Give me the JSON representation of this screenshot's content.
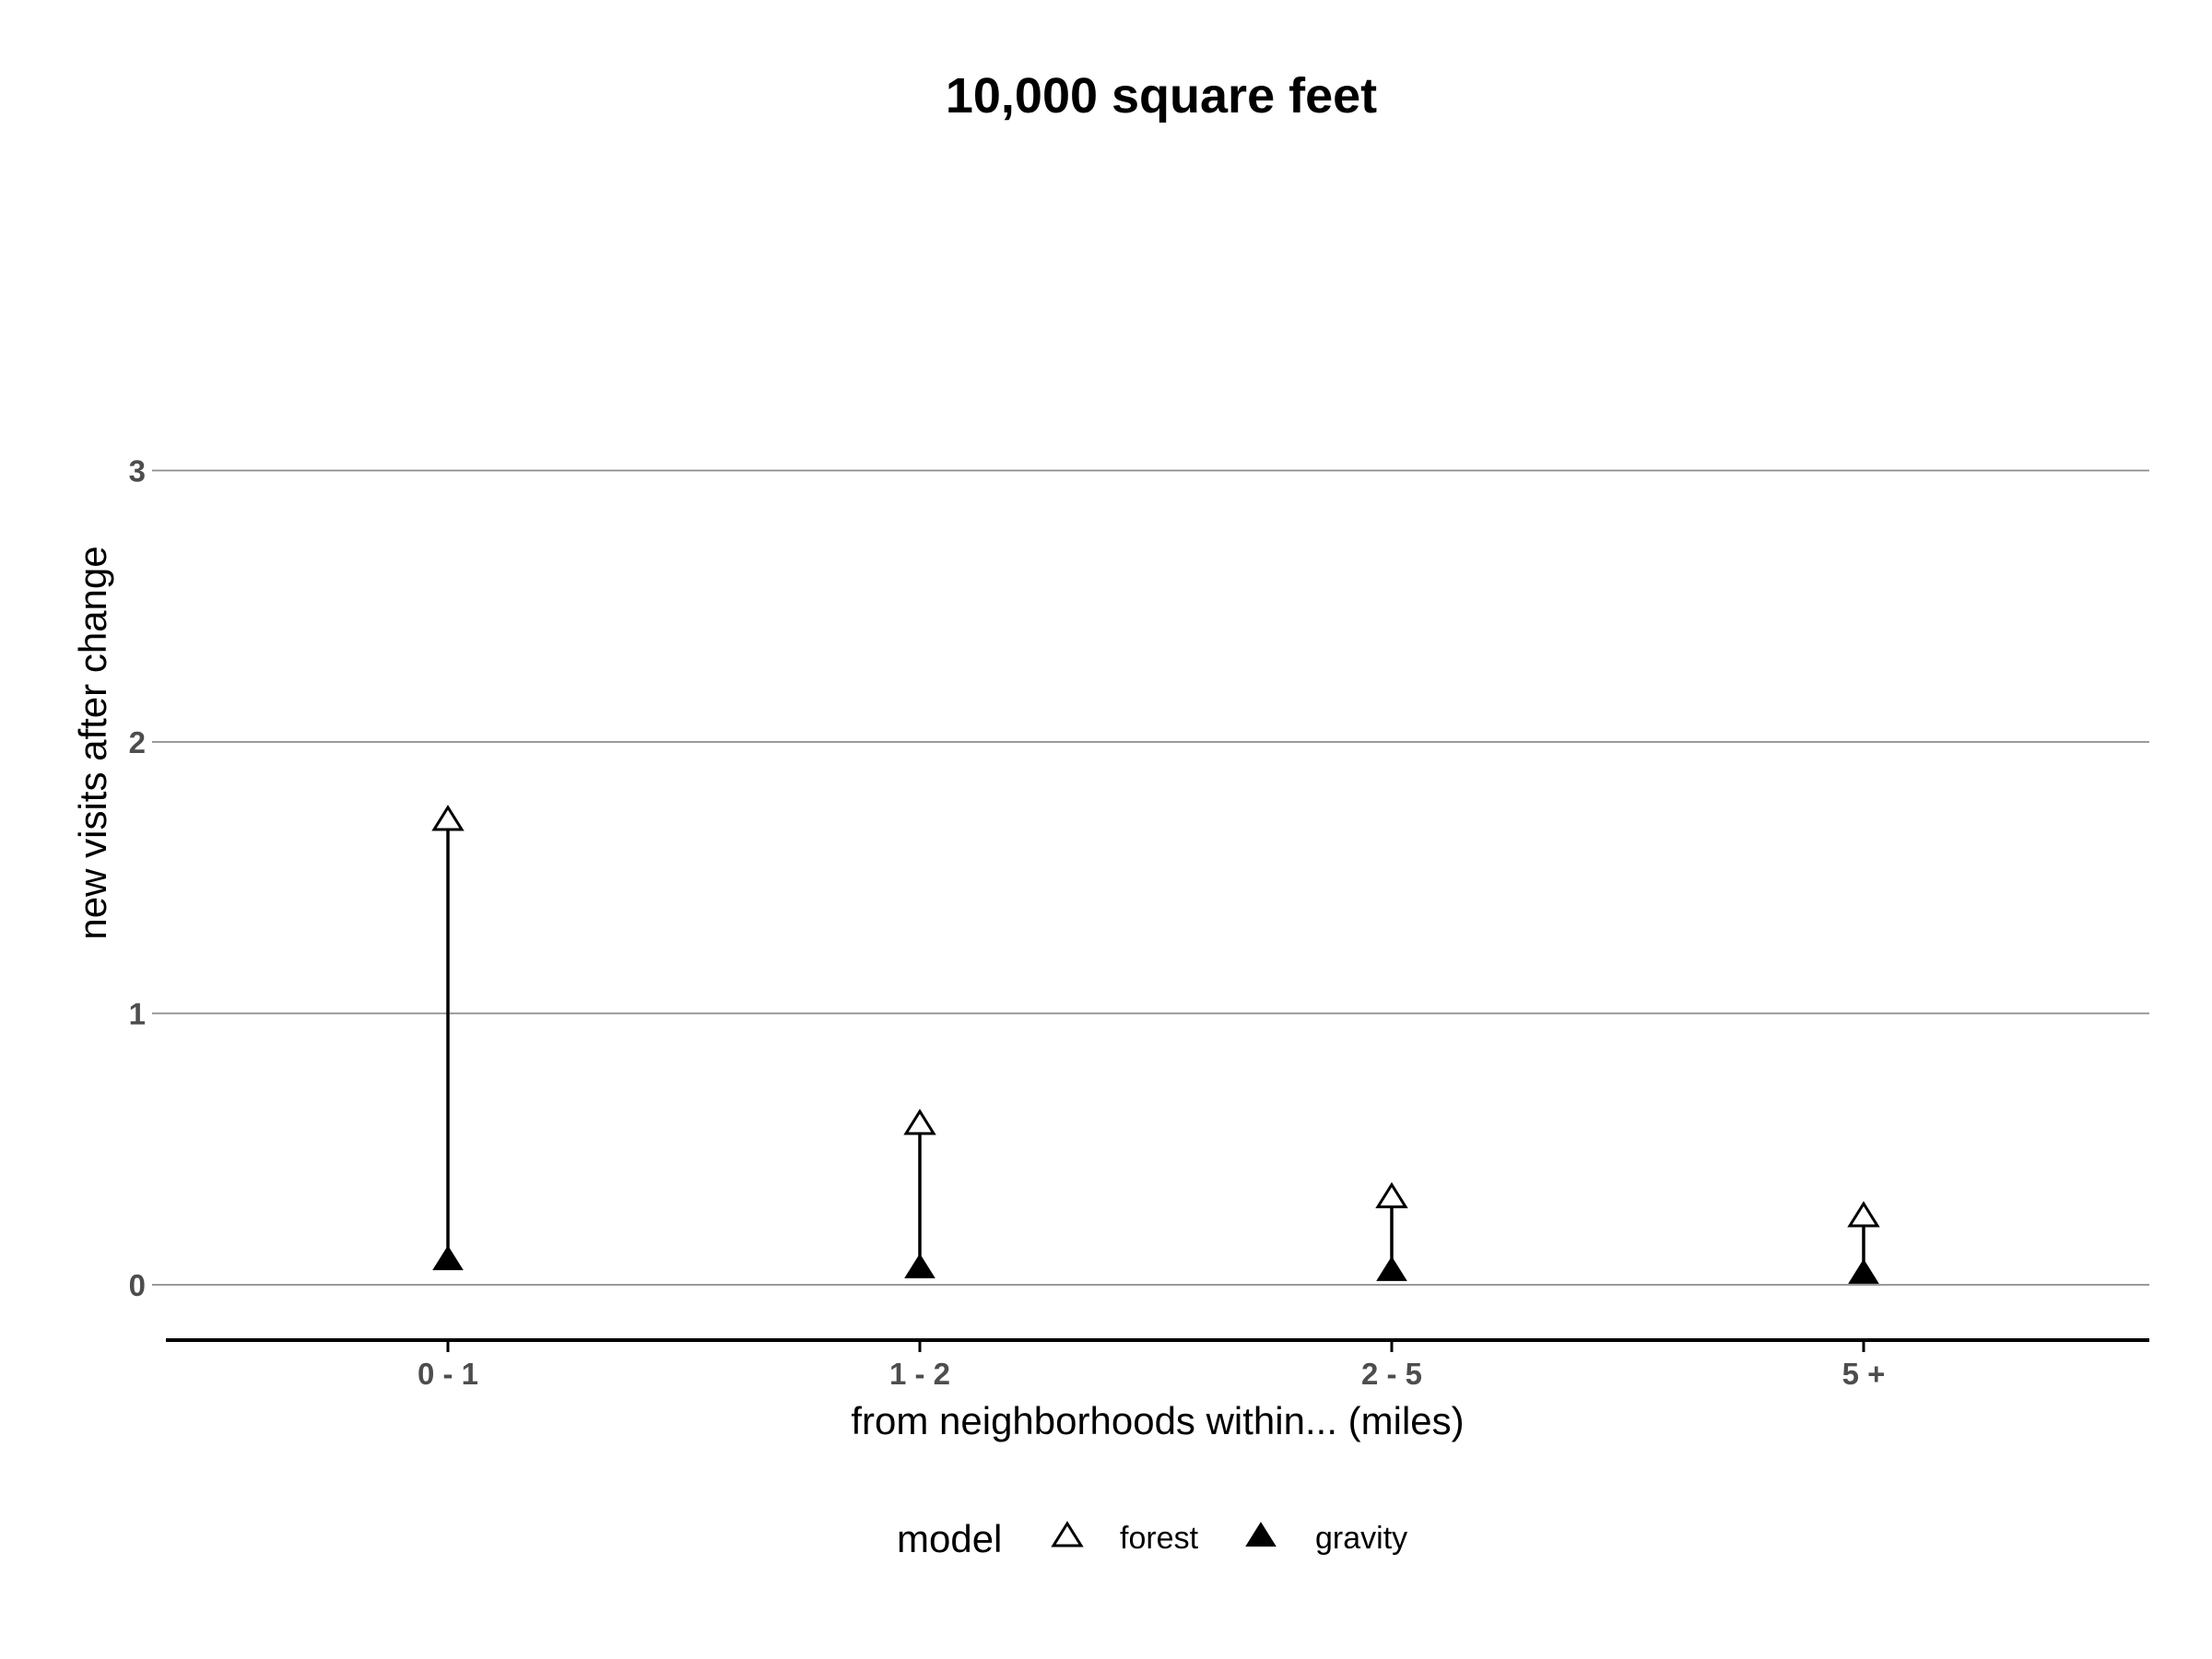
{
  "chart_data": {
    "type": "scatter",
    "title": "10,000 square feet",
    "xlabel": "from neighborhoods within... (miles)",
    "ylabel": "new visits after change",
    "categories": [
      "0 - 1",
      "1 - 2",
      "2 - 5",
      "5 +"
    ],
    "ylim": [
      -0.19,
      3.0
    ],
    "yticks": [
      0,
      1,
      2,
      3
    ],
    "grid": "horizontal",
    "legend": {
      "title": "model",
      "position": "bottom",
      "entries": [
        "forest",
        "gravity"
      ]
    },
    "series": [
      {
        "name": "forest",
        "marker": "open-triangle",
        "values": [
          1.71,
          0.59,
          0.32,
          0.25
        ]
      },
      {
        "name": "gravity",
        "marker": "filled-triangle",
        "values": [
          0.09,
          0.06,
          0.05,
          0.04
        ]
      }
    ],
    "segments": "vertical line from gravity value to forest value at each category",
    "colors": {
      "marker": "#000000",
      "gridline": "#8c8c8c",
      "tick_text": "#4d4d4d"
    }
  }
}
